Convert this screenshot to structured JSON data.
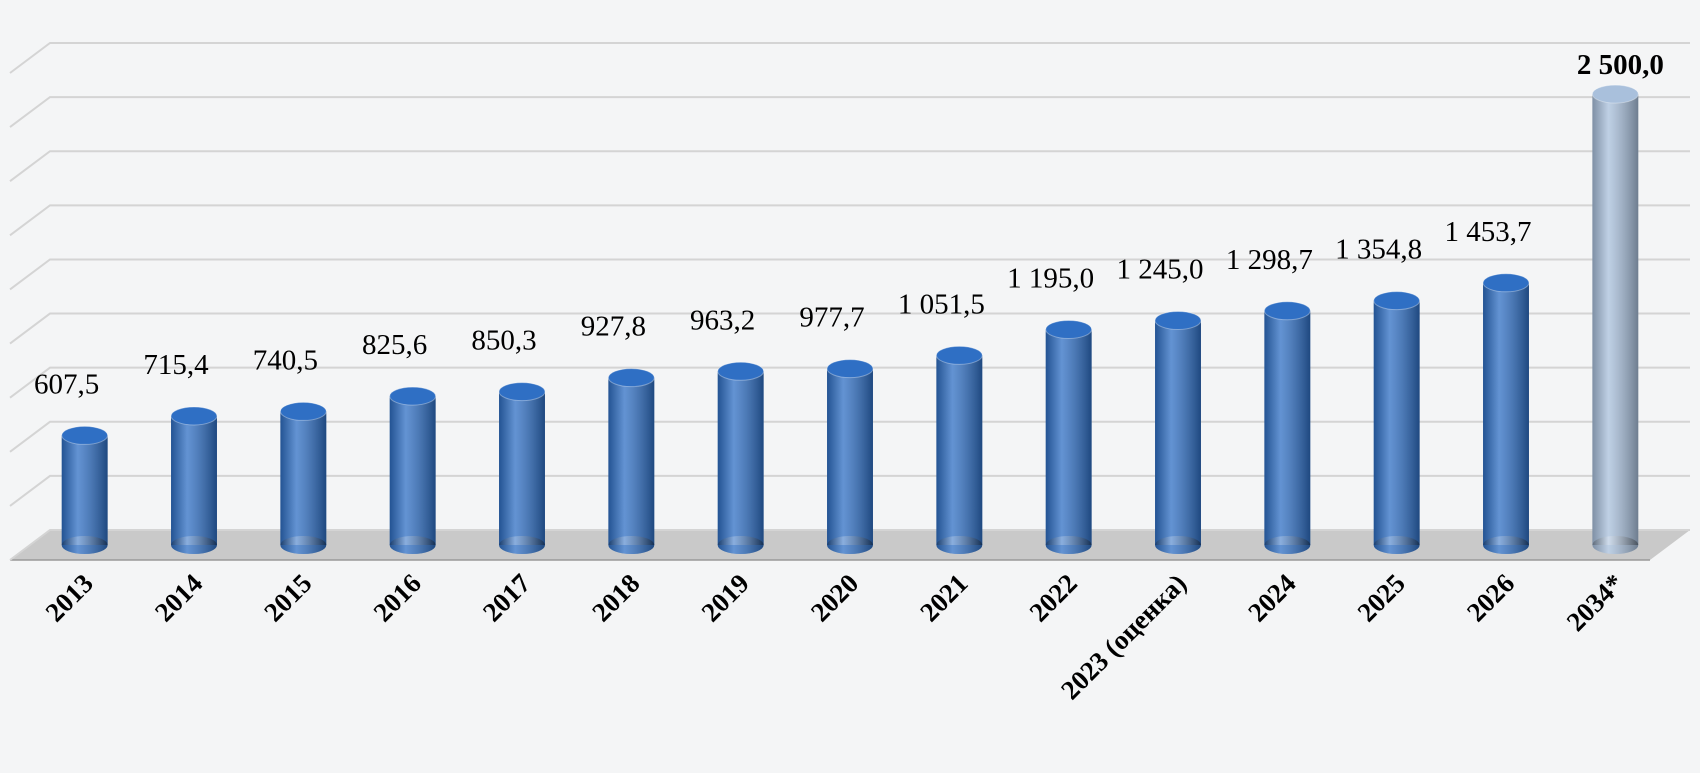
{
  "chart_data": {
    "type": "bar",
    "categories": [
      "2013",
      "2014",
      "2015",
      "2016",
      "2017",
      "2018",
      "2019",
      "2020",
      "2021",
      "2022",
      "2023 (оценка)",
      "2024",
      "2025",
      "2026",
      "2034*"
    ],
    "values": [
      607.5,
      715.4,
      740.5,
      825.6,
      850.3,
      927.8,
      963.2,
      977.7,
      1051.5,
      1195.0,
      1245.0,
      1298.7,
      1354.8,
      1453.7,
      2500.0
    ],
    "value_labels": [
      "607,5",
      "715,4",
      "740,5",
      "825,6",
      "850,3",
      "927,8",
      "963,2",
      "977,7",
      "1 051,5",
      "1 195,0",
      "1 245,0",
      "1 298,7",
      "1 354,8",
      "1 453,7",
      "2 500,0"
    ],
    "colors": [
      "#2f6fc4",
      "#2f6fc4",
      "#2f6fc4",
      "#2f6fc4",
      "#2f6fc4",
      "#2f6fc4",
      "#2f6fc4",
      "#2f6fc4",
      "#2f6fc4",
      "#2f6fc4",
      "#2f6fc4",
      "#2f6fc4",
      "#2f6fc4",
      "#2f6fc4",
      "#a9c0dc"
    ],
    "ylim": [
      0,
      2700
    ],
    "yticks": [
      0,
      300,
      600,
      900,
      1200,
      1500,
      1800,
      2100,
      2400,
      2700
    ],
    "grid": true
  }
}
